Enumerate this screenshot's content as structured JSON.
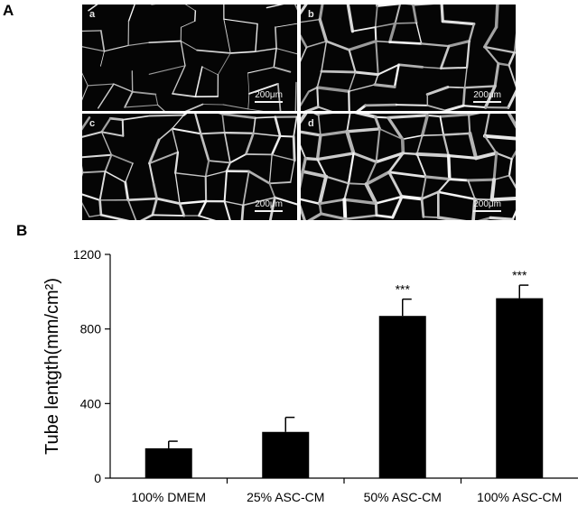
{
  "figure": {
    "panel_a_label": "A",
    "panel_b_label": "B"
  },
  "micrographs": [
    {
      "label": "a",
      "scale": "200μm"
    },
    {
      "label": "b",
      "scale": "200μm"
    },
    {
      "label": "c",
      "scale": "200μm"
    },
    {
      "label": "d",
      "scale": "200μm"
    }
  ],
  "chart_data": {
    "type": "bar",
    "title": "",
    "xlabel": "",
    "ylabel": "Tube lentgth(mm/cm²)",
    "categories": [
      "100% DMEM",
      "25% ASC-CM",
      "50% ASC-CM",
      "100% ASC-CM"
    ],
    "values": [
      160,
      248,
      870,
      965
    ],
    "error": [
      38,
      78,
      90,
      70
    ],
    "significance": [
      "",
      "",
      "***",
      "***"
    ],
    "ylim": [
      0,
      1200
    ],
    "yticks": [
      0,
      400,
      800,
      1200
    ],
    "grid": false,
    "legend": "none",
    "bar_color": "#000000"
  }
}
